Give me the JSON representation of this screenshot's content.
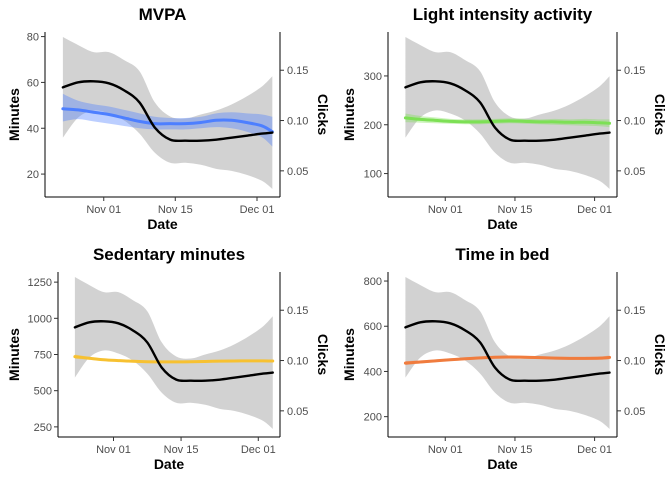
{
  "chart_data": [
    {
      "type": "line",
      "title": "MVPA",
      "xlabel": "Date",
      "ylabel": "Minutes",
      "y2label": "Clicks",
      "x_ticks": [
        "Nov 01",
        "Nov 15",
        "Dec 01"
      ],
      "x": [
        "Oct 24",
        "Oct 27",
        "Oct 30",
        "Nov 02",
        "Nov 05",
        "Nov 08",
        "Nov 11",
        "Nov 14",
        "Nov 17",
        "Nov 20",
        "Nov 23",
        "Nov 26",
        "Nov 29",
        "Dec 02",
        "Dec 04"
      ],
      "ylim": [
        10,
        82
      ],
      "y_ticks": [
        20,
        40,
        60,
        80
      ],
      "y2lim": [
        0.024,
        0.188
      ],
      "y2_ticks": [
        "0.05",
        "0.10",
        "0.15"
      ],
      "series": [
        {
          "axis": "left",
          "color": "#4d7fff",
          "band_color": "#4d7fff",
          "values": [
            48.5,
            48,
            47,
            46,
            44.5,
            43,
            42,
            42,
            42,
            42.5,
            43.5,
            43.5,
            42.5,
            41,
            38.5
          ],
          "lower": [
            43,
            44,
            43,
            42,
            41,
            40,
            39.5,
            39.5,
            39.5,
            40,
            40.5,
            40,
            38.5,
            36,
            32
          ],
          "upper": [
            55,
            52,
            50.5,
            49.5,
            48,
            46.5,
            45,
            44.5,
            44.5,
            45,
            46.5,
            47,
            46.5,
            46,
            45
          ]
        },
        {
          "axis": "right",
          "color": "#000000",
          "band_color": "#c0c0c0",
          "values": [
            0.133,
            0.138,
            0.139,
            0.137,
            0.13,
            0.118,
            0.093,
            0.081,
            0.08,
            0.08,
            0.081,
            0.083,
            0.085,
            0.087,
            0.088
          ],
          "lower": [
            0.083,
            0.103,
            0.11,
            0.107,
            0.1,
            0.087,
            0.068,
            0.058,
            0.058,
            0.056,
            0.052,
            0.05,
            0.046,
            0.04,
            0.032
          ],
          "upper": [
            0.183,
            0.175,
            0.168,
            0.168,
            0.16,
            0.149,
            0.118,
            0.104,
            0.102,
            0.106,
            0.11,
            0.116,
            0.124,
            0.134,
            0.144
          ]
        }
      ]
    },
    {
      "type": "line",
      "title": "Light intensity activity",
      "xlabel": "Date",
      "ylabel": "Minutes",
      "y2label": "Clicks",
      "x_ticks": [
        "Nov 01",
        "Nov 15",
        "Dec 01"
      ],
      "x": [
        "Oct 24",
        "Oct 27",
        "Oct 30",
        "Nov 02",
        "Nov 05",
        "Nov 08",
        "Nov 11",
        "Nov 14",
        "Nov 17",
        "Nov 20",
        "Nov 23",
        "Nov 26",
        "Nov 29",
        "Dec 02",
        "Dec 04"
      ],
      "ylim": [
        52,
        390
      ],
      "y_ticks": [
        100,
        200,
        300
      ],
      "y2lim": [
        0.024,
        0.188
      ],
      "y2_ticks": [
        "0.05",
        "0.10",
        "0.15"
      ],
      "series": [
        {
          "axis": "left",
          "color": "#7de055",
          "band_color": "#7de055",
          "values": [
            214,
            211,
            209,
            207,
            206,
            206,
            207,
            208,
            207,
            206,
            206,
            205,
            205,
            204,
            203
          ],
          "lower": [
            205,
            204,
            203,
            202,
            201,
            201,
            202,
            203,
            202,
            201,
            200,
            199,
            198,
            197,
            195
          ],
          "upper": [
            223,
            218,
            215,
            212,
            211,
            211,
            212,
            213,
            212,
            211,
            212,
            211,
            212,
            211,
            211
          ]
        },
        {
          "axis": "right",
          "color": "#000000",
          "band_color": "#c0c0c0",
          "values": [
            0.133,
            0.138,
            0.139,
            0.137,
            0.13,
            0.118,
            0.093,
            0.081,
            0.08,
            0.08,
            0.081,
            0.083,
            0.085,
            0.087,
            0.088
          ],
          "lower": [
            0.083,
            0.103,
            0.11,
            0.107,
            0.1,
            0.087,
            0.068,
            0.058,
            0.058,
            0.056,
            0.052,
            0.05,
            0.046,
            0.04,
            0.032
          ],
          "upper": [
            0.183,
            0.175,
            0.168,
            0.168,
            0.16,
            0.149,
            0.118,
            0.104,
            0.102,
            0.106,
            0.11,
            0.116,
            0.124,
            0.134,
            0.144
          ]
        }
      ]
    },
    {
      "type": "line",
      "title": "Sedentary minutes",
      "xlabel": "Date",
      "ylabel": "Minutes",
      "y2label": "Clicks",
      "x_ticks": [
        "Nov 01",
        "Nov 15",
        "Dec 01"
      ],
      "x": [
        "Oct 24",
        "Oct 27",
        "Oct 30",
        "Nov 02",
        "Nov 05",
        "Nov 08",
        "Nov 11",
        "Nov 14",
        "Nov 17",
        "Nov 20",
        "Nov 23",
        "Nov 26",
        "Nov 29",
        "Dec 02",
        "Dec 04"
      ],
      "ylim": [
        180,
        1320
      ],
      "y_ticks": [
        250,
        500,
        750,
        1000,
        1250
      ],
      "y2lim": [
        0.024,
        0.188
      ],
      "y2_ticks": [
        "0.05",
        "0.10",
        "0.15"
      ],
      "series": [
        {
          "axis": "left",
          "color": "#f7c131",
          "band_color": "#f7c131",
          "values": [
            735,
            724,
            714,
            708,
            703,
            700,
            699,
            699,
            700,
            702,
            704,
            705,
            706,
            706,
            705
          ],
          "lower": [
            720,
            714,
            706,
            701,
            697,
            694,
            693,
            693,
            694,
            696,
            698,
            699,
            699,
            698,
            695
          ],
          "upper": [
            750,
            734,
            722,
            715,
            709,
            706,
            705,
            705,
            706,
            708,
            710,
            711,
            713,
            714,
            715
          ]
        },
        {
          "axis": "right",
          "color": "#000000",
          "band_color": "#c0c0c0",
          "values": [
            0.133,
            0.138,
            0.139,
            0.137,
            0.13,
            0.118,
            0.093,
            0.081,
            0.08,
            0.08,
            0.081,
            0.083,
            0.085,
            0.087,
            0.088
          ],
          "lower": [
            0.083,
            0.103,
            0.11,
            0.107,
            0.1,
            0.087,
            0.068,
            0.058,
            0.058,
            0.056,
            0.052,
            0.05,
            0.046,
            0.04,
            0.032
          ],
          "upper": [
            0.183,
            0.175,
            0.168,
            0.168,
            0.16,
            0.149,
            0.118,
            0.104,
            0.102,
            0.106,
            0.11,
            0.116,
            0.124,
            0.134,
            0.144
          ]
        }
      ]
    },
    {
      "type": "line",
      "title": "Time in bed",
      "xlabel": "Date",
      "ylabel": "Minutes",
      "y2label": "Clicks",
      "x_ticks": [
        "Nov 01",
        "Nov 15",
        "Dec 01"
      ],
      "x": [
        "Oct 24",
        "Oct 27",
        "Oct 30",
        "Nov 02",
        "Nov 05",
        "Nov 08",
        "Nov 11",
        "Nov 14",
        "Nov 17",
        "Nov 20",
        "Nov 23",
        "Nov 26",
        "Nov 29",
        "Dec 02",
        "Dec 04"
      ],
      "ylim": [
        110,
        840
      ],
      "y_ticks": [
        200,
        400,
        600,
        800
      ],
      "y2lim": [
        0.024,
        0.188
      ],
      "y2_ticks": [
        "0.05",
        "0.10",
        "0.15"
      ],
      "series": [
        {
          "axis": "left",
          "color": "#f07c3e",
          "band_color": "#f07c3e",
          "values": [
            437,
            442,
            447,
            452,
            456,
            460,
            463,
            464,
            463,
            461,
            459,
            458,
            458,
            459,
            462
          ],
          "lower": [
            428,
            435,
            441,
            446,
            450,
            454,
            457,
            458,
            457,
            455,
            453,
            452,
            452,
            452,
            454
          ],
          "upper": [
            446,
            449,
            453,
            458,
            462,
            466,
            469,
            470,
            469,
            467,
            465,
            464,
            464,
            466,
            470
          ]
        },
        {
          "axis": "right",
          "color": "#000000",
          "band_color": "#c0c0c0",
          "values": [
            0.133,
            0.138,
            0.139,
            0.137,
            0.13,
            0.118,
            0.093,
            0.081,
            0.08,
            0.08,
            0.081,
            0.083,
            0.085,
            0.087,
            0.088
          ],
          "lower": [
            0.083,
            0.103,
            0.11,
            0.107,
            0.1,
            0.087,
            0.068,
            0.058,
            0.058,
            0.056,
            0.052,
            0.05,
            0.046,
            0.04,
            0.032
          ],
          "upper": [
            0.183,
            0.175,
            0.168,
            0.168,
            0.16,
            0.149,
            0.118,
            0.104,
            0.102,
            0.106,
            0.11,
            0.116,
            0.124,
            0.134,
            0.144
          ]
        }
      ]
    }
  ]
}
